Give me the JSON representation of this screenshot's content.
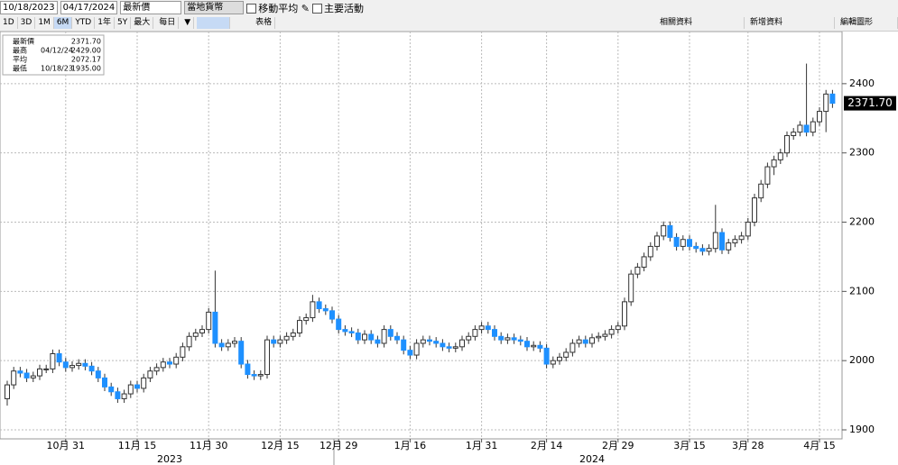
{
  "toolbar": {
    "start_date": "10/18/2023",
    "end_date": "04/17/2024",
    "price_field": "最新價",
    "currency": "當地貨幣",
    "moving_avg": "移動平均",
    "key_events": "主要活動",
    "ranges": [
      "1D",
      "3D",
      "1M",
      "6M",
      "YTD",
      "1年",
      "5Y",
      "最大"
    ],
    "frequency": "每日",
    "table": "表格",
    "related": "相關資料",
    "add_data": "新增資料",
    "edit_chart": "編輯圖形"
  },
  "chart_data": {
    "type": "candlestick",
    "legend": [
      {
        "label": "最新價",
        "date": null,
        "value": "2371.70"
      },
      {
        "label": "最高",
        "date": "04/12/24",
        "value": "2429.00"
      },
      {
        "label": "平均",
        "date": null,
        "value": "2072.17"
      },
      {
        "label": "最低",
        "date": "10/18/23",
        "value": "1935.00"
      }
    ],
    "up_color": "#ffffff",
    "down_color": "#1e90ff",
    "open": [
      1945,
      1965,
      1985,
      1982,
      1975,
      1978,
      1988,
      1988,
      2010,
      1998,
      1990,
      1993,
      1996,
      1992,
      1985,
      1975,
      1962,
      1955,
      1945,
      1952,
      1965,
      1960,
      1975,
      1985,
      1990,
      1998,
      1995,
      2005,
      2020,
      2035,
      2040,
      2045,
      2070,
      2025,
      2020,
      2025,
      2028,
      1995,
      1980,
      1978,
      1980,
      2030,
      2025,
      2030,
      2035,
      2040,
      2058,
      2062,
      2085,
      2075,
      2072,
      2060,
      2045,
      2042,
      2040,
      2030,
      2038,
      2030,
      2025,
      2045,
      2035,
      2030,
      2015,
      2008,
      2025,
      2030,
      2028,
      2025,
      2020,
      2018,
      2020,
      2030,
      2035,
      2045,
      2050,
      2045,
      2035,
      2030,
      2033,
      2030,
      2028,
      2020,
      2022,
      2018,
      1995,
      2000,
      2005,
      2012,
      2025,
      2030,
      2025,
      2033,
      2035,
      2038,
      2045,
      2050,
      2085,
      2125,
      2135,
      2150,
      2165,
      2180,
      2195,
      2178,
      2165,
      2175,
      2165,
      2162,
      2158,
      2162,
      2185,
      2160,
      2170,
      2175,
      2180,
      2200,
      2235,
      2255,
      2280,
      2290,
      2300,
      2325,
      2330,
      2340,
      2330,
      2345,
      2360,
      2385
    ],
    "high": [
      1971,
      1991,
      1991,
      1988,
      1984,
      1994,
      1994,
      2016,
      2016,
      2004,
      1999,
      2002,
      2002,
      1998,
      1991,
      1981,
      1968,
      1961,
      1958,
      1971,
      1971,
      1981,
      1991,
      1996,
      2004,
      2004,
      2011,
      2026,
      2041,
      2046,
      2051,
      2076,
      2130,
      2031,
      2031,
      2034,
      2034,
      2001,
      1986,
      1986,
      2036,
      2036,
      2036,
      2041,
      2046,
      2064,
      2068,
      2095,
      2091,
      2081,
      2078,
      2066,
      2051,
      2048,
      2046,
      2044,
      2044,
      2036,
      2051,
      2051,
      2041,
      2036,
      2021,
      2031,
      2036,
      2036,
      2034,
      2031,
      2026,
      2026,
      2036,
      2041,
      2051,
      2056,
      2056,
      2051,
      2041,
      2039,
      2039,
      2036,
      2034,
      2028,
      2028,
      2024,
      2006,
      2011,
      2018,
      2031,
      2036,
      2036,
      2039,
      2041,
      2044,
      2051,
      2056,
      2091,
      2131,
      2141,
      2156,
      2171,
      2186,
      2201,
      2201,
      2184,
      2181,
      2181,
      2171,
      2168,
      2168,
      2225,
      2191,
      2176,
      2181,
      2186,
      2206,
      2241,
      2261,
      2286,
      2296,
      2306,
      2331,
      2336,
      2346,
      2429,
      2351,
      2366,
      2391,
      2391
    ],
    "low": [
      1935,
      1959,
      1976,
      1969,
      1969,
      1972,
      1982,
      1982,
      1992,
      1984,
      1984,
      1987,
      1986,
      1979,
      1969,
      1956,
      1949,
      1939,
      1939,
      1946,
      1954,
      1954,
      1969,
      1979,
      1984,
      1989,
      1989,
      1999,
      2014,
      2029,
      2034,
      2039,
      2019,
      2014,
      2014,
      2019,
      1989,
      1974,
      1972,
      1972,
      1974,
      2019,
      2019,
      2024,
      2029,
      2034,
      2052,
      2056,
      2069,
      2066,
      2054,
      2039,
      2036,
      2034,
      2024,
      2024,
      2024,
      2019,
      2019,
      2029,
      2024,
      2009,
      2002,
      2002,
      2019,
      2022,
      2019,
      2014,
      2012,
      2012,
      2014,
      2024,
      2029,
      2039,
      2039,
      2029,
      2024,
      2024,
      2024,
      2022,
      2014,
      2014,
      2012,
      1989,
      1989,
      1994,
      1999,
      2006,
      2019,
      2019,
      2019,
      2027,
      2029,
      2032,
      2039,
      2044,
      2079,
      2119,
      2129,
      2144,
      2159,
      2174,
      2172,
      2159,
      2159,
      2159,
      2156,
      2152,
      2152,
      2156,
      2154,
      2154,
      2164,
      2169,
      2174,
      2194,
      2229,
      2249,
      2268,
      2284,
      2294,
      2319,
      2324,
      2324,
      2324,
      2339,
      2330,
      2365
    ],
    "close": [
      1965,
      1985,
      1982,
      1975,
      1978,
      1988,
      1988,
      2010,
      1998,
      1990,
      1993,
      1996,
      1992,
      1985,
      1975,
      1962,
      1955,
      1945,
      1952,
      1965,
      1960,
      1975,
      1985,
      1990,
      1998,
      1995,
      2005,
      2020,
      2035,
      2040,
      2045,
      2070,
      2025,
      2020,
      2025,
      2028,
      1995,
      1980,
      1978,
      1980,
      2030,
      2025,
      2030,
      2035,
      2040,
      2058,
      2062,
      2085,
      2075,
      2072,
      2060,
      2045,
      2042,
      2040,
      2030,
      2038,
      2030,
      2025,
      2045,
      2035,
      2030,
      2015,
      2008,
      2025,
      2030,
      2028,
      2025,
      2020,
      2018,
      2020,
      2030,
      2035,
      2045,
      2050,
      2045,
      2035,
      2030,
      2033,
      2030,
      2028,
      2020,
      2022,
      2018,
      1995,
      2000,
      2005,
      2012,
      2025,
      2030,
      2025,
      2033,
      2035,
      2038,
      2045,
      2050,
      2085,
      2125,
      2135,
      2150,
      2165,
      2180,
      2195,
      2178,
      2165,
      2175,
      2165,
      2162,
      2158,
      2162,
      2185,
      2160,
      2170,
      2175,
      2180,
      2200,
      2235,
      2255,
      2280,
      2290,
      2300,
      2325,
      2330,
      2340,
      2330,
      2345,
      2360,
      2385,
      2371.7
    ],
    "xticks": [
      {
        "value": 9,
        "label": "10月 31"
      },
      {
        "value": 20,
        "label": "11月 15"
      },
      {
        "value": 31,
        "label": "11月 30"
      },
      {
        "value": 42,
        "label": "12月 15"
      },
      {
        "value": 51,
        "label": "12月 29"
      },
      {
        "value": 62,
        "label": "1月 16"
      },
      {
        "value": 73,
        "label": "1月 31"
      },
      {
        "value": 83,
        "label": "2月 14"
      },
      {
        "value": 94,
        "label": "2月 29"
      },
      {
        "value": 105,
        "label": "3月 15"
      },
      {
        "value": 114,
        "label": "3月 28"
      },
      {
        "value": 125,
        "label": "4月 15"
      }
    ],
    "years": [
      {
        "value": 25,
        "label": "2023"
      },
      {
        "value": 90,
        "label": "2024"
      }
    ],
    "ylim": [
      1887,
      2474
    ],
    "yticks": [
      1900,
      2000,
      2100,
      2200,
      2300,
      2400
    ],
    "grid": true
  }
}
